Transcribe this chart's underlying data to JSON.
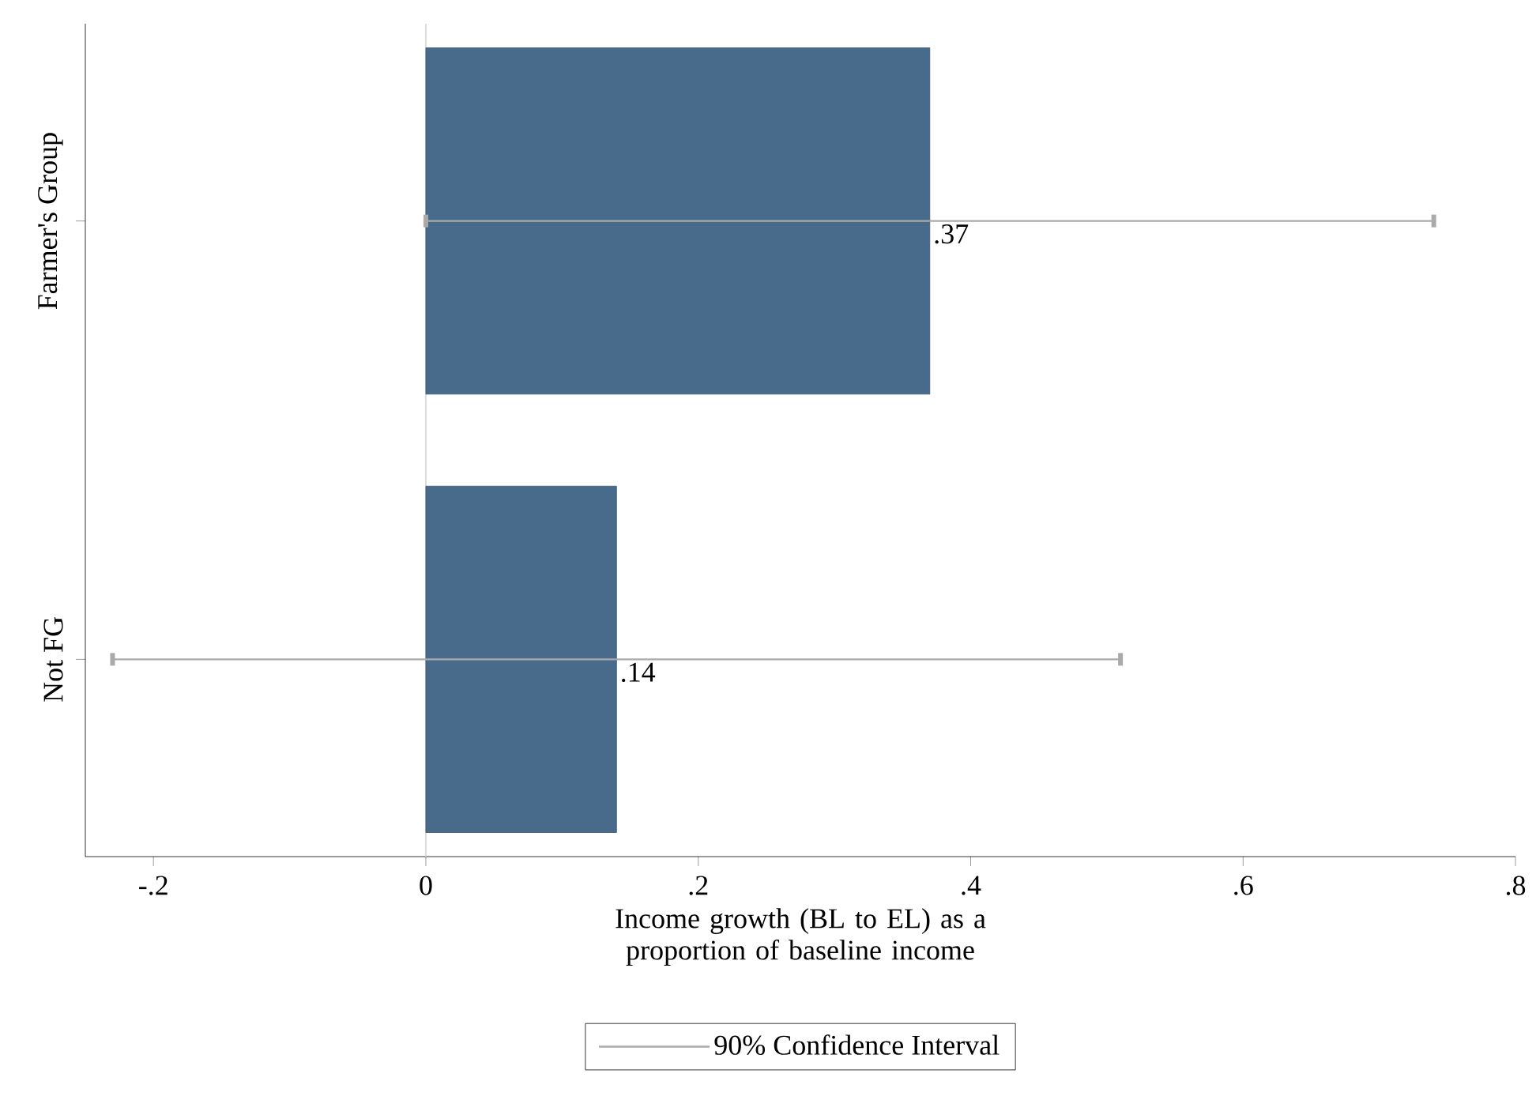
{
  "chart_data": {
    "type": "bar",
    "orientation": "horizontal",
    "xlabel": "Income growth (BL to EL) as a proportion of baseline income",
    "categories": [
      "Farmer's Group",
      "Not FG"
    ],
    "series": [
      {
        "color": "#486b8c",
        "values": [
          0.37,
          0.14
        ],
        "value_labels": [
          ".37",
          ".14"
        ],
        "errors": [
          0.37,
          0.37
        ]
      }
    ],
    "xlim": [
      -0.25,
      0.8
    ],
    "xticks": [
      {
        "value": -0.2,
        "label": "-.2"
      },
      0,
      {
        "value": 0.2,
        "label": ".2"
      },
      {
        "value": 0.4,
        "label": ".4"
      },
      {
        "value": 0.6,
        "label": ".6"
      },
      {
        "value": 0.8,
        "label": ".8"
      }
    ],
    "ref_lines": [
      {
        "axis": "x",
        "value": 0,
        "color": "#dcdcdc"
      }
    ],
    "legend_title": "90% Confidence Interval",
    "grid": false
  }
}
